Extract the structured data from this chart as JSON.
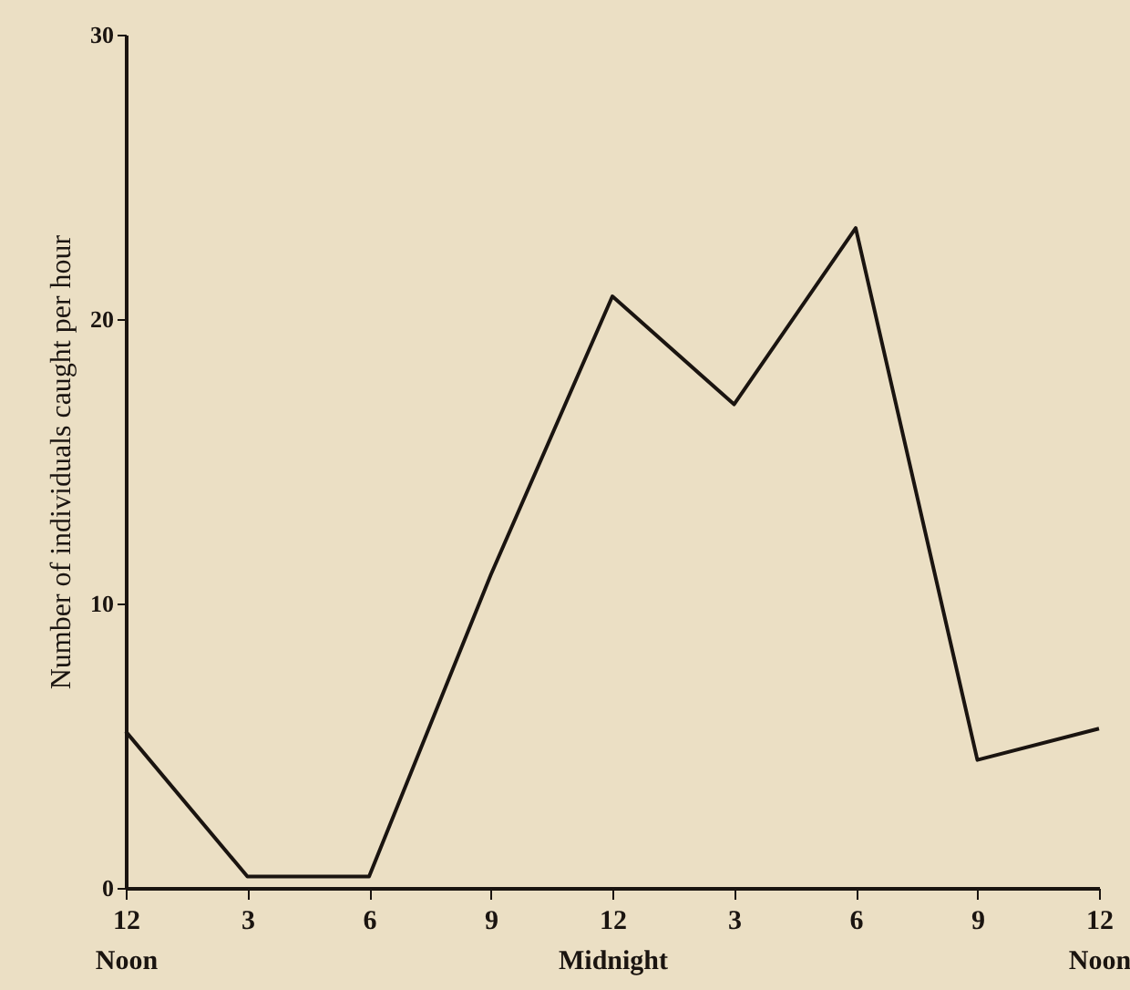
{
  "chart_data": {
    "type": "line",
    "ylabel": "Number of individuals caught per hour",
    "categories": [
      "12 Noon",
      "3",
      "6",
      "9",
      "12 Midnight",
      "3",
      "6",
      "9",
      "12 Noon"
    ],
    "series": [
      {
        "color": "#1a1410",
        "values": [
          5.5,
          0.4,
          0.4,
          11,
          20.8,
          17,
          23.2,
          4.5,
          5.6
        ]
      }
    ],
    "ylim": [
      0,
      30
    ],
    "yticks": [
      0,
      10,
      20,
      30
    ],
    "grid": false,
    "marker": "none",
    "line_style": "solid"
  }
}
